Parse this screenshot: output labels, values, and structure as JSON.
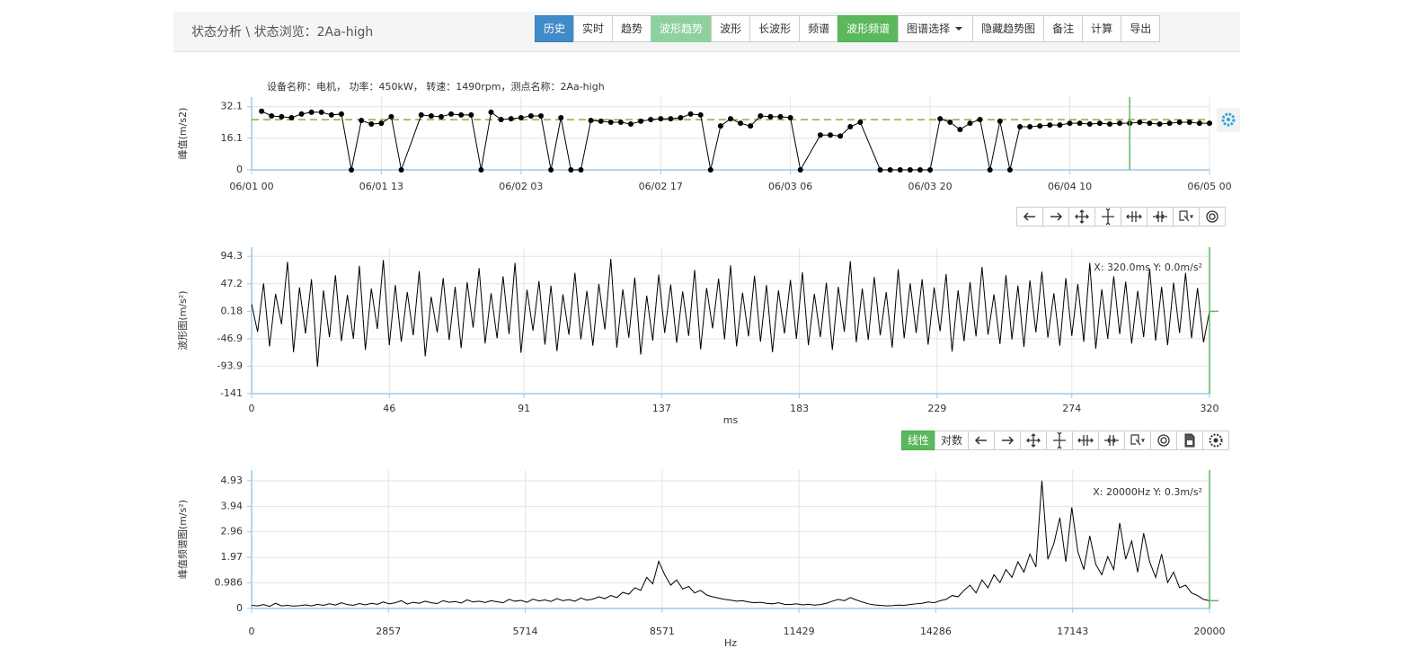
{
  "header": {
    "breadcrumb": "状态分析 \\ 状态浏览：2Aa-high",
    "buttons": [
      {
        "label": "历史",
        "style": "primary"
      },
      {
        "label": "实时",
        "style": "default"
      },
      {
        "label": "趋势",
        "style": "default"
      },
      {
        "label": "波形趋势",
        "style": "success-light"
      },
      {
        "label": "波形",
        "style": "default"
      },
      {
        "label": "长波形",
        "style": "default"
      },
      {
        "label": "频谱",
        "style": "default"
      },
      {
        "label": "波形频谱",
        "style": "success"
      },
      {
        "label": "图谱选择",
        "style": "dropdown"
      },
      {
        "label": "隐藏趋势图",
        "style": "default"
      },
      {
        "label": "备注",
        "style": "default"
      },
      {
        "label": "计算",
        "style": "default"
      },
      {
        "label": "导出",
        "style": "default"
      }
    ]
  },
  "spectrum_toolbar": {
    "buttons": [
      {
        "label": "线性",
        "style": "success"
      },
      {
        "label": "对数",
        "style": "default"
      }
    ]
  },
  "chart_data": [
    {
      "type": "line",
      "subtitle": "设备名称：电机， 功率：450kW， 转速：1490rpm，测点名称：2Aa-high",
      "y_label": "峰值(m/s2)",
      "color": "#000000",
      "markers": true,
      "grid": true,
      "x": [
        1,
        2,
        3,
        4,
        5,
        6,
        7,
        8,
        9,
        10,
        11,
        12,
        13,
        14,
        15,
        17,
        18,
        19,
        20,
        21,
        22,
        23,
        24,
        25,
        26,
        27,
        28,
        29,
        30,
        31,
        32,
        33,
        34,
        35,
        36,
        37,
        38,
        39,
        40,
        41,
        42,
        43,
        44,
        45,
        46,
        47,
        48,
        49,
        50,
        51,
        52,
        53,
        54,
        55,
        57,
        58,
        59,
        60,
        61,
        63,
        64,
        65,
        66,
        67,
        68,
        69,
        70,
        71,
        72,
        73,
        74,
        75,
        76,
        77,
        78,
        79,
        80,
        81,
        82,
        83,
        84,
        85,
        86,
        87,
        88,
        89,
        90,
        91,
        92,
        93,
        94,
        95,
        96
      ],
      "values": [
        29.8,
        27.4,
        27.0,
        26.5,
        28.4,
        29.3,
        29.3,
        27.9,
        28.4,
        0,
        25.1,
        23.3,
        23.7,
        27.0,
        0,
        27.9,
        27.4,
        27.0,
        28.4,
        27.9,
        27.9,
        0,
        29.3,
        25.6,
        26.0,
        26.5,
        27.4,
        27.4,
        0,
        26.5,
        0,
        0,
        25.1,
        24.7,
        24.2,
        24.2,
        23.3,
        24.7,
        25.6,
        26.0,
        26.0,
        26.5,
        28.4,
        27.9,
        0,
        22.3,
        26.0,
        23.7,
        22.3,
        27.4,
        27.0,
        27.0,
        26.5,
        0,
        17.7,
        17.7,
        17.2,
        21.9,
        24.2,
        0,
        0,
        0,
        0,
        0,
        0,
        26.0,
        24.2,
        20.5,
        23.7,
        25.6,
        0,
        24.7,
        0,
        21.9,
        21.9,
        22.3,
        22.8,
        22.8,
        23.7,
        23.7,
        23.3,
        23.7,
        23.3,
        23.7,
        23.7,
        24.2,
        23.7,
        23.3,
        23.7,
        24.2,
        24.2,
        23.7,
        23.7
      ],
      "reference_line": 25.5,
      "reference_color": "#9aa832",
      "cursor": {
        "x": 88
      },
      "cursor_color": "#5cb85c",
      "xlim": [
        0,
        96
      ],
      "ylim": [
        0,
        37
      ],
      "xticks": [
        {
          "value": 0,
          "label": "06/01 00"
        },
        {
          "value": 13,
          "label": "06/01 13"
        },
        {
          "value": 27,
          "label": "06/02 03"
        },
        {
          "value": 41,
          "label": "06/02 17"
        },
        {
          "value": 54,
          "label": "06/03 06"
        },
        {
          "value": 68,
          "label": "06/03 20"
        },
        {
          "value": 82,
          "label": "06/04 10"
        },
        {
          "value": 96,
          "label": "06/05 00"
        }
      ],
      "yticks": [
        0,
        16.1,
        32.1
      ]
    },
    {
      "type": "line",
      "y_label": "波形图(m/s²)",
      "x_label": "ms",
      "annotation": "X: 320.0ms  Y: 0.0m/s²",
      "color": "#000000",
      "grid": true,
      "cursor": {
        "x": 320,
        "y": 0
      },
      "cursor_color": "#5cb85c",
      "x": [
        0,
        2,
        4,
        6,
        8,
        10,
        12,
        14,
        16,
        18,
        20,
        22,
        24,
        26,
        28,
        30,
        32,
        34,
        36,
        38,
        40,
        42,
        44,
        46,
        48,
        50,
        52,
        54,
        56,
        58,
        60,
        62,
        64,
        66,
        68,
        70,
        72,
        74,
        76,
        78,
        80,
        82,
        84,
        86,
        88,
        90,
        92,
        94,
        96,
        98,
        100,
        102,
        104,
        106,
        108,
        110,
        112,
        114,
        116,
        118,
        120,
        122,
        124,
        126,
        128,
        130,
        132,
        134,
        136,
        138,
        140,
        142,
        144,
        146,
        148,
        150,
        152,
        154,
        156,
        158,
        160,
        162,
        164,
        166,
        168,
        170,
        172,
        174,
        176,
        178,
        180,
        182,
        184,
        186,
        188,
        190,
        192,
        194,
        196,
        198,
        200,
        202,
        204,
        206,
        208,
        210,
        212,
        214,
        216,
        218,
        220,
        222,
        224,
        226,
        228,
        230,
        232,
        234,
        236,
        238,
        240,
        242,
        244,
        246,
        248,
        250,
        252,
        254,
        256,
        258,
        260,
        262,
        264,
        266,
        268,
        270,
        272,
        274,
        276,
        278,
        280,
        282,
        284,
        286,
        288,
        290,
        292,
        294,
        296,
        298,
        300,
        302,
        304,
        306,
        308,
        310,
        312,
        314,
        316,
        318,
        320
      ],
      "values": [
        12,
        -35,
        48,
        -60,
        30,
        -22,
        85,
        -70,
        41,
        -38,
        55,
        -95,
        36,
        -44,
        62,
        -51,
        28,
        -47,
        78,
        -66,
        39,
        -30,
        88,
        -58,
        45,
        -52,
        33,
        -41,
        69,
        -77,
        25,
        -36,
        57,
        -49,
        42,
        -63,
        50,
        -28,
        74,
        -55,
        31,
        -46,
        60,
        -39,
        83,
        -71,
        37,
        -33,
        52,
        -57,
        44,
        -68,
        29,
        -40,
        66,
        -48,
        35,
        -59,
        47,
        -31,
        90,
        -62,
        38,
        -45,
        58,
        -74,
        27,
        -50,
        63,
        -37,
        46,
        -54,
        34,
        -42,
        71,
        -65,
        40,
        -29,
        56,
        -48,
        79,
        -60,
        32,
        -43,
        61,
        -52,
        45,
        -70,
        36,
        -38,
        54,
        -47,
        67,
        -58,
        30,
        -44,
        49,
        -66,
        42,
        -35,
        86,
        -53,
        39,
        -49,
        59,
        -41,
        33,
        -62,
        72,
        -46,
        48,
        -37,
        55,
        -57,
        41,
        -34,
        64,
        -69,
        36,
        -51,
        50,
        -43,
        76,
        -40,
        29,
        -56,
        62,
        -48,
        44,
        -61,
        53,
        -36,
        68,
        -45,
        31,
        -59,
        57,
        -42,
        47,
        -52,
        83,
        -64,
        38,
        -47,
        60,
        -39,
        51,
        -55,
        35,
        -44,
        73,
        -50,
        42,
        -58,
        49,
        -37,
        66,
        -46,
        40,
        -53,
        0
      ],
      "xlim": [
        0,
        320
      ],
      "ylim": [
        -141,
        110
      ],
      "xticks": [
        0,
        46,
        91,
        137,
        183,
        229,
        274,
        320
      ],
      "yticks": [
        -141,
        -93.9,
        -46.9,
        0.18,
        47.2,
        94.3
      ]
    },
    {
      "type": "line",
      "y_label": "峰值频谱图(m/s²)",
      "x_label": "Hz",
      "annotation": "X: 20000Hz  Y: 0.3m/s²",
      "color": "#000000",
      "grid": true,
      "cursor": {
        "x": 20000,
        "y": 0.3
      },
      "cursor_color": "#5cb85c",
      "x": [
        0,
        125,
        250,
        375,
        500,
        625,
        750,
        875,
        1000,
        1125,
        1250,
        1375,
        1500,
        1625,
        1750,
        1875,
        2000,
        2125,
        2250,
        2375,
        2500,
        2625,
        2750,
        2875,
        3000,
        3125,
        3250,
        3375,
        3500,
        3625,
        3750,
        3875,
        4000,
        4125,
        4250,
        4375,
        4500,
        4625,
        4750,
        4875,
        5000,
        5125,
        5250,
        5375,
        5500,
        5625,
        5750,
        5875,
        6000,
        6125,
        6250,
        6375,
        6500,
        6625,
        6750,
        6875,
        7000,
        7125,
        7250,
        7375,
        7500,
        7625,
        7750,
        7875,
        8000,
        8125,
        8250,
        8375,
        8500,
        8625,
        8750,
        8875,
        9000,
        9125,
        9250,
        9375,
        9500,
        9625,
        9750,
        9875,
        10000,
        10125,
        10250,
        10375,
        10500,
        10625,
        10750,
        10875,
        11000,
        11125,
        11250,
        11375,
        11500,
        11625,
        11750,
        11875,
        12000,
        12125,
        12250,
        12375,
        12500,
        12625,
        12750,
        12875,
        13000,
        13125,
        13250,
        13375,
        13500,
        13625,
        13750,
        13875,
        14000,
        14125,
        14250,
        14375,
        14500,
        14625,
        14750,
        14875,
        15000,
        15125,
        15250,
        15375,
        15500,
        15625,
        15750,
        15875,
        16000,
        16125,
        16250,
        16375,
        16500,
        16625,
        16750,
        16875,
        17000,
        17125,
        17250,
        17375,
        17500,
        17625,
        17750,
        17875,
        18000,
        18125,
        18250,
        18375,
        18500,
        18625,
        18750,
        18875,
        19000,
        19125,
        19250,
        19375,
        19500,
        19625,
        19750,
        19875,
        20000
      ],
      "values": [
        0.12,
        0.1,
        0.15,
        0.08,
        0.2,
        0.1,
        0.12,
        0.09,
        0.11,
        0.14,
        0.1,
        0.16,
        0.12,
        0.18,
        0.13,
        0.22,
        0.15,
        0.12,
        0.19,
        0.14,
        0.2,
        0.16,
        0.25,
        0.18,
        0.22,
        0.3,
        0.17,
        0.24,
        0.2,
        0.28,
        0.22,
        0.19,
        0.3,
        0.24,
        0.27,
        0.21,
        0.33,
        0.25,
        0.28,
        0.23,
        0.3,
        0.26,
        0.22,
        0.35,
        0.28,
        0.31,
        0.24,
        0.36,
        0.29,
        0.33,
        0.27,
        0.38,
        0.3,
        0.34,
        0.28,
        0.4,
        0.32,
        0.36,
        0.45,
        0.38,
        0.5,
        0.42,
        0.62,
        0.55,
        0.8,
        0.7,
        1.2,
        0.95,
        1.82,
        1.3,
        0.9,
        1.1,
        0.75,
        0.85,
        0.6,
        0.7,
        0.52,
        0.45,
        0.4,
        0.35,
        0.32,
        0.28,
        0.3,
        0.25,
        0.22,
        0.24,
        0.2,
        0.18,
        0.22,
        0.16,
        0.15,
        0.18,
        0.14,
        0.16,
        0.13,
        0.15,
        0.2,
        0.28,
        0.35,
        0.3,
        0.42,
        0.33,
        0.25,
        0.18,
        0.14,
        0.12,
        0.1,
        0.11,
        0.13,
        0.12,
        0.15,
        0.18,
        0.2,
        0.25,
        0.22,
        0.3,
        0.35,
        0.5,
        0.45,
        0.7,
        0.9,
        0.6,
        1.1,
        0.8,
        1.3,
        1.0,
        1.5,
        1.2,
        1.8,
        1.4,
        2.1,
        1.6,
        4.93,
        1.9,
        2.5,
        3.5,
        1.8,
        3.9,
        2.2,
        1.5,
        2.8,
        1.7,
        1.3,
        2.0,
        1.5,
        3.3,
        1.9,
        2.6,
        1.4,
        2.9,
        1.8,
        1.2,
        2.1,
        1.0,
        1.4,
        0.8,
        0.9,
        0.6,
        0.5,
        0.35,
        0.3
      ],
      "xlim": [
        0,
        20000
      ],
      "ylim": [
        0,
        5.34
      ],
      "xticks": [
        0,
        2857,
        5714,
        8571,
        11429,
        14286,
        17143,
        20000
      ],
      "yticks": [
        0,
        0.986,
        1.97,
        2.96,
        3.94,
        4.93
      ]
    }
  ]
}
